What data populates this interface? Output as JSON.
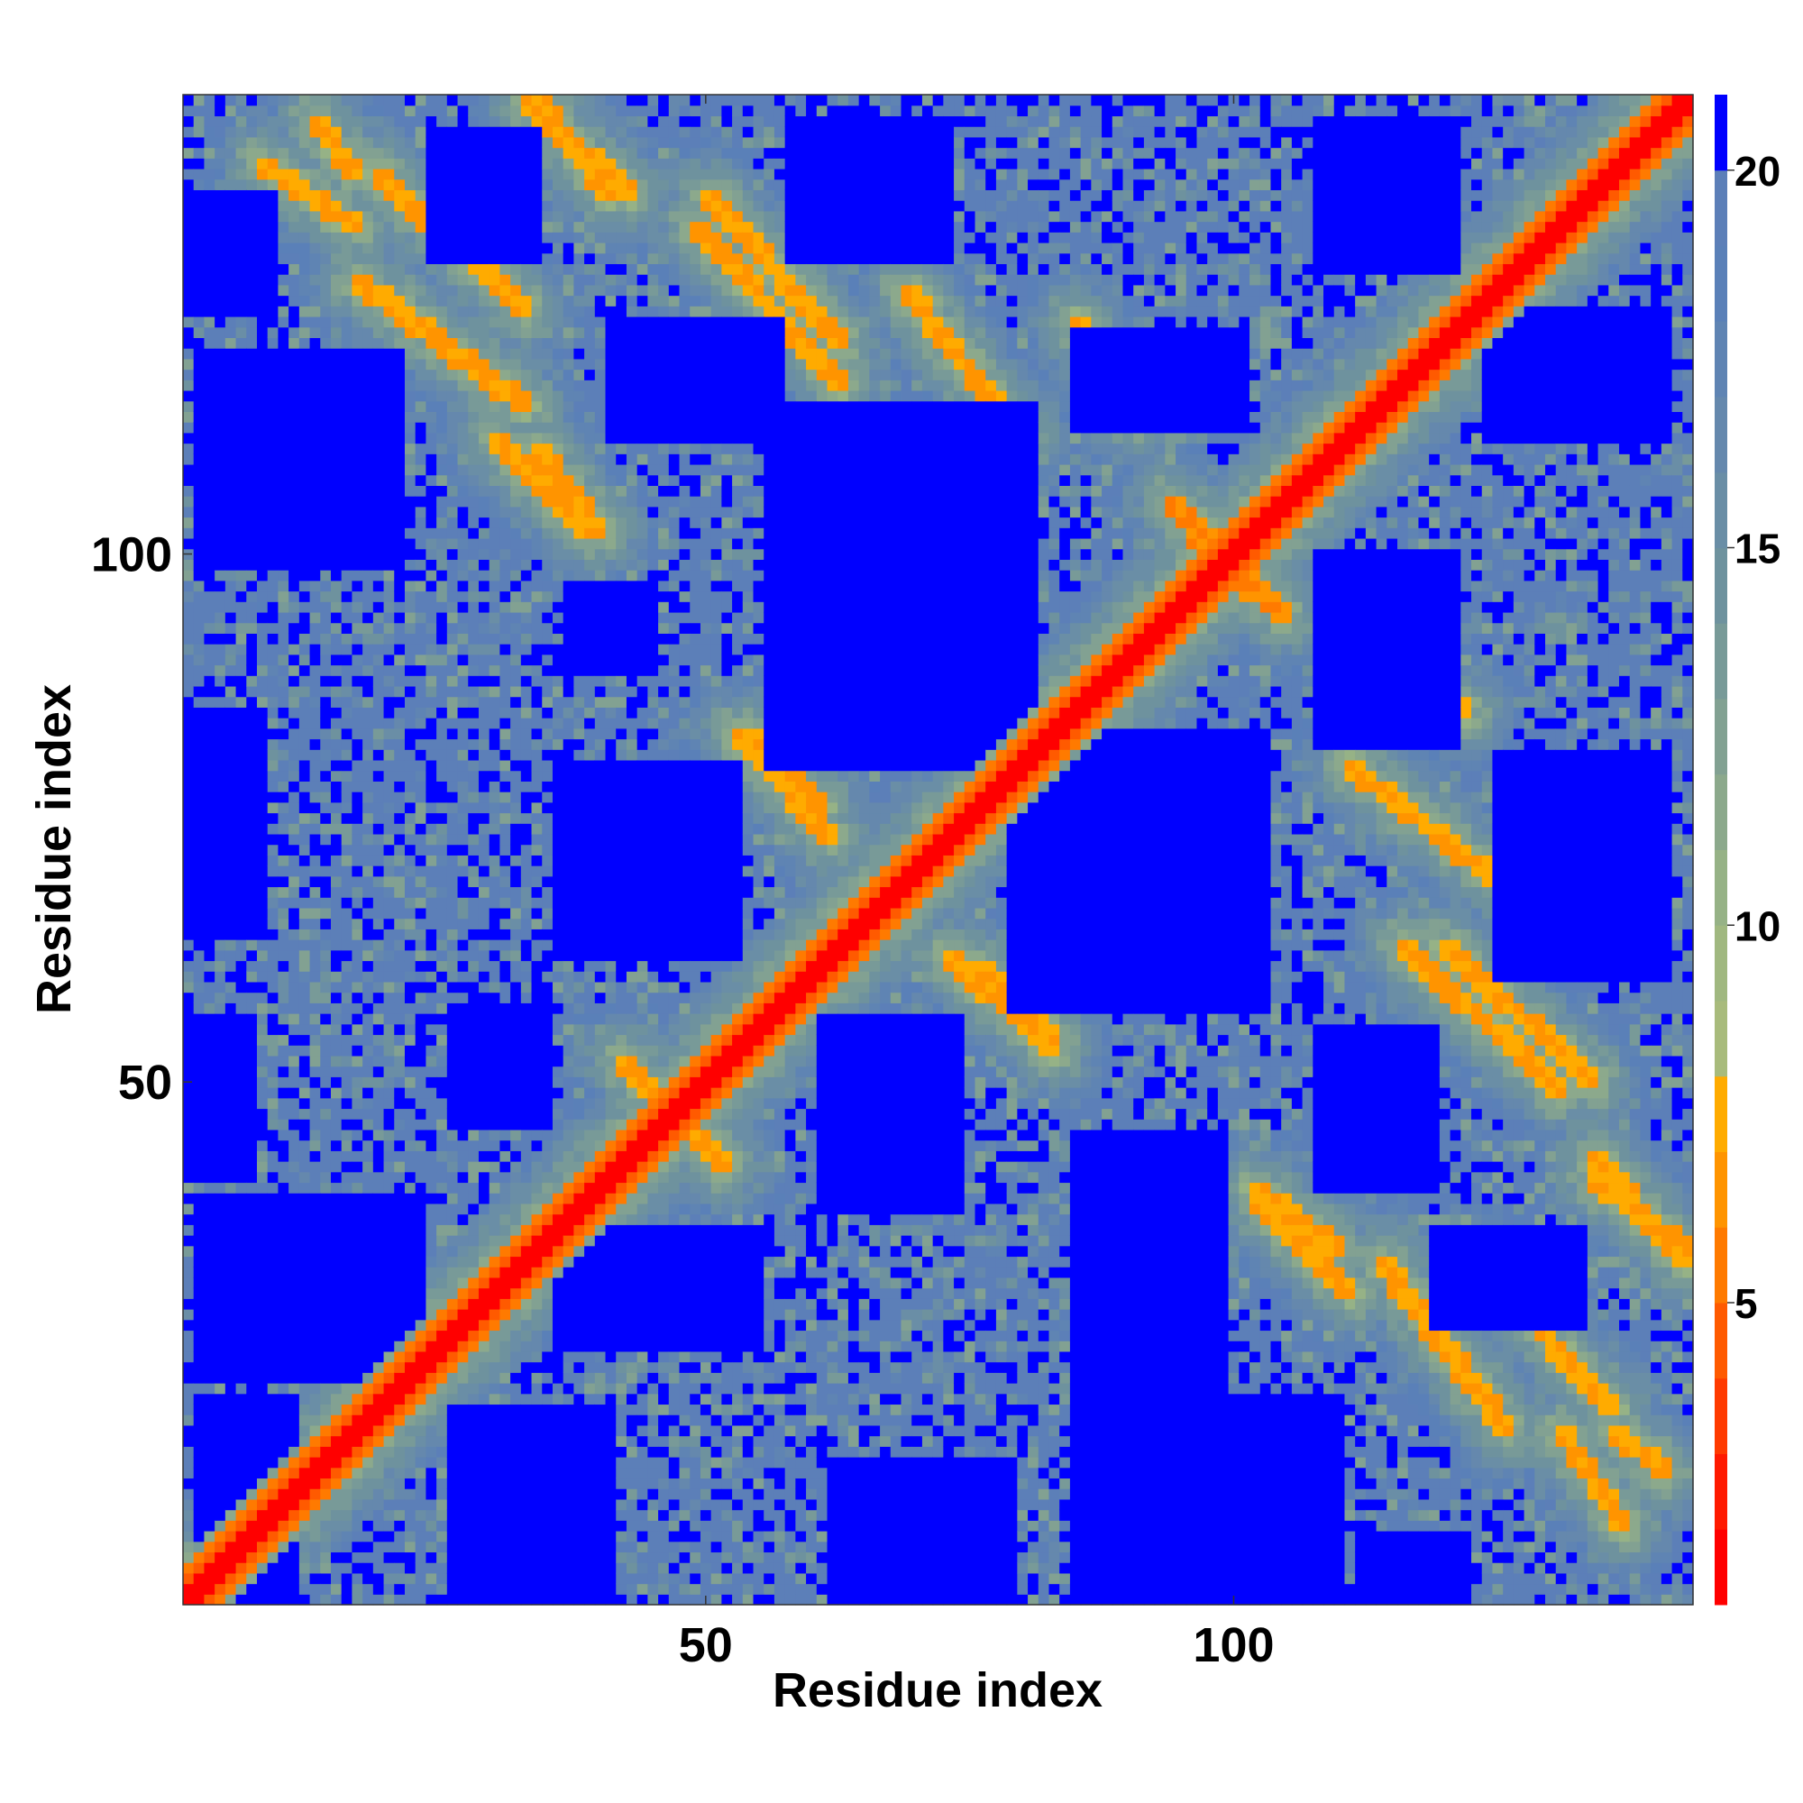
{
  "chart_data": {
    "type": "heatmap",
    "title": "",
    "xlabel": "Residue index",
    "ylabel": "Residue index",
    "n": 143,
    "xlim": [
      1,
      143
    ],
    "ylim": [
      1,
      143
    ],
    "x_ticks": [
      50,
      100
    ],
    "y_ticks": [
      50,
      100
    ],
    "colorbar": {
      "ticks": [
        5,
        10,
        15,
        20
      ],
      "range": [
        1,
        21
      ],
      "levels": [
        {
          "max": 2,
          "color": "#ff0000"
        },
        {
          "max": 3,
          "color": "#ff1a00"
        },
        {
          "max": 4,
          "color": "#ff3a00"
        },
        {
          "max": 5,
          "color": "#ff5a00"
        },
        {
          "max": 6,
          "color": "#ff7a00"
        },
        {
          "max": 7,
          "color": "#ff9400"
        },
        {
          "max": 8,
          "color": "#ffab00"
        },
        {
          "max": 9,
          "color": "#a8bb7c"
        },
        {
          "max": 10,
          "color": "#a0b880"
        },
        {
          "max": 11,
          "color": "#96b286"
        },
        {
          "max": 12,
          "color": "#8ca98c"
        },
        {
          "max": 13,
          "color": "#82a192"
        },
        {
          "max": 14,
          "color": "#789a98"
        },
        {
          "max": 15,
          "color": "#6e929e"
        },
        {
          "max": 16,
          "color": "#6a8ea6"
        },
        {
          "max": 17,
          "color": "#6588ad"
        },
        {
          "max": 18,
          "color": "#5f84b3"
        },
        {
          "max": 19,
          "color": "#5a80b8"
        },
        {
          "max": 20,
          "color": "#5c7fb8"
        },
        {
          "max": 21,
          "color": "#0000ff"
        }
      ]
    },
    "diagonal_band": {
      "from": 1,
      "to": 143,
      "value": 2
    },
    "contact_bands": [
      {
        "from": [
          13,
          141
        ],
        "to": [
          17,
          136
        ],
        "value": 6
      },
      {
        "from": [
          19,
          136
        ],
        "to": [
          33,
          123
        ],
        "value": 6
      },
      {
        "from": [
          34,
          143
        ],
        "to": [
          41,
          134
        ],
        "value": 6
      },
      {
        "from": [
          34,
          110
        ],
        "to": [
          40,
          102
        ],
        "value": 6
      },
      {
        "from": [
          50,
          134
        ],
        "to": [
          63,
          120
        ],
        "value": 6
      },
      {
        "from": [
          54,
          83
        ],
        "to": [
          61,
          76
        ],
        "value": 6
      },
      {
        "from": [
          73,
          62
        ],
        "to": [
          83,
          53
        ],
        "value": 6
      },
      {
        "from": [
          42,
          52
        ],
        "to": [
          51,
          43
        ],
        "value": 6
      },
      {
        "from": [
          96,
          102
        ],
        "to": [
          105,
          94
        ],
        "value": 5
      },
      {
        "from": [
          85,
          122
        ],
        "to": [
          90,
          113
        ],
        "value": 6
      },
      {
        "from": [
          111,
          80
        ],
        "to": [
          125,
          69
        ],
        "value": 6
      },
      {
        "from": [
          116,
          63
        ],
        "to": [
          131,
          49
        ],
        "value": 6
      },
      {
        "from": [
          102,
          39
        ],
        "to": [
          111,
          30
        ],
        "value": 6
      },
      {
        "from": [
          114,
          33
        ],
        "to": [
          126,
          17
        ],
        "value": 6
      },
      {
        "from": [
          134,
          43
        ],
        "to": [
          143,
          33
        ],
        "value": 6
      },
      {
        "from": [
          131,
          17
        ],
        "to": [
          137,
          8
        ],
        "value": 6
      }
    ],
    "blue_regions": [
      {
        "x": [
          1,
          9
        ],
        "y": [
          123,
          134
        ]
      },
      {
        "x": [
          24,
          34
        ],
        "y": [
          128,
          140
        ]
      },
      {
        "x": [
          58,
          73
        ],
        "y": [
          128,
          141
        ]
      },
      {
        "x": [
          108,
          121
        ],
        "y": [
          127,
          141
        ]
      },
      {
        "x": [
          2,
          21
        ],
        "y": [
          99,
          119
        ]
      },
      {
        "x": [
          41,
          57
        ],
        "y": [
          111,
          122
        ]
      },
      {
        "x": [
          85,
          101
        ],
        "y": [
          112,
          121
        ]
      },
      {
        "x": [
          124,
          141
        ],
        "y": [
          111,
          123
        ]
      },
      {
        "x": [
          37,
          45
        ],
        "y": [
          89,
          97
        ]
      },
      {
        "x": [
          56,
          81
        ],
        "y": [
          80,
          114
        ]
      },
      {
        "x": [
          1,
          8
        ],
        "y": [
          64,
          85
        ]
      },
      {
        "x": [
          36,
          53
        ],
        "y": [
          62,
          80
        ]
      },
      {
        "x": [
          79,
          103
        ],
        "y": [
          57,
          83
        ]
      },
      {
        "x": [
          108,
          121
        ],
        "y": [
          82,
          100
        ]
      },
      {
        "x": [
          125,
          141
        ],
        "y": [
          60,
          81
        ]
      },
      {
        "x": [
          1,
          7
        ],
        "y": [
          41,
          56
        ]
      },
      {
        "x": [
          26,
          35
        ],
        "y": [
          46,
          57
        ]
      },
      {
        "x": [
          61,
          74
        ],
        "y": [
          38,
          56
        ]
      },
      {
        "x": [
          108,
          119
        ],
        "y": [
          40,
          55
        ]
      },
      {
        "x": [
          2,
          23
        ],
        "y": [
          22,
          39
        ]
      },
      {
        "x": [
          36,
          55
        ],
        "y": [
          25,
          36
        ]
      },
      {
        "x": [
          85,
          99
        ],
        "y": [
          1,
          45
        ]
      },
      {
        "x": [
          119,
          133
        ],
        "y": [
          27,
          36
        ]
      },
      {
        "x": [
          2,
          11
        ],
        "y": [
          1,
          20
        ]
      },
      {
        "x": [
          26,
          41
        ],
        "y": [
          1,
          19
        ]
      },
      {
        "x": [
          62,
          79
        ],
        "y": [
          1,
          14
        ]
      },
      {
        "x": [
          99,
          110
        ],
        "y": [
          1,
          20
        ]
      },
      {
        "x": [
          112,
          122
        ],
        "y": [
          1,
          7
        ]
      }
    ]
  }
}
